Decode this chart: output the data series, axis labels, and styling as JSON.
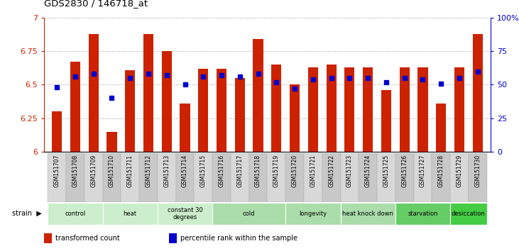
{
  "title": "GDS2830 / 146718_at",
  "samples": [
    "GSM151707",
    "GSM151708",
    "GSM151709",
    "GSM151710",
    "GSM151711",
    "GSM151712",
    "GSM151713",
    "GSM151714",
    "GSM151715",
    "GSM151716",
    "GSM151717",
    "GSM151718",
    "GSM151719",
    "GSM151720",
    "GSM151721",
    "GSM151722",
    "GSM151723",
    "GSM151724",
    "GSM151725",
    "GSM151726",
    "GSM151727",
    "GSM151728",
    "GSM151729",
    "GSM151730"
  ],
  "bar_values": [
    6.3,
    6.67,
    6.88,
    6.15,
    6.61,
    6.88,
    6.75,
    6.36,
    6.62,
    6.62,
    6.55,
    6.84,
    6.65,
    6.5,
    6.63,
    6.65,
    6.63,
    6.63,
    6.46,
    6.63,
    6.63,
    6.36,
    6.63,
    6.88
  ],
  "percentile_values": [
    48,
    56,
    58,
    40,
    55,
    58,
    57,
    50,
    56,
    57,
    56,
    58,
    52,
    47,
    54,
    55,
    55,
    55,
    52,
    55,
    54,
    51,
    55,
    60
  ],
  "bar_color": "#cc2200",
  "dot_color": "#0000cc",
  "ylim_left": [
    6.0,
    7.0
  ],
  "ylim_right": [
    0,
    100
  ],
  "yticks_left": [
    6.0,
    6.25,
    6.5,
    6.75,
    7.0
  ],
  "ytick_labels_left": [
    "6",
    "6.25",
    "6.5",
    "6.75",
    "7"
  ],
  "yticks_right": [
    0,
    25,
    50,
    75,
    100
  ],
  "ytick_labels_right": [
    "0",
    "25",
    "50",
    "75",
    "100%"
  ],
  "groups": [
    {
      "label": "control",
      "start": 0,
      "end": 2,
      "color": "#cceecc"
    },
    {
      "label": "heat",
      "start": 3,
      "end": 5,
      "color": "#cceecc"
    },
    {
      "label": "constant 30\ndegrees",
      "start": 6,
      "end": 8,
      "color": "#cceecc"
    },
    {
      "label": "cold",
      "start": 9,
      "end": 12,
      "color": "#aaddaa"
    },
    {
      "label": "longevity",
      "start": 13,
      "end": 15,
      "color": "#aaddaa"
    },
    {
      "label": "heat knock down",
      "start": 16,
      "end": 18,
      "color": "#aaddaa"
    },
    {
      "label": "starvation",
      "start": 19,
      "end": 21,
      "color": "#66cc66"
    },
    {
      "label": "desiccation",
      "start": 22,
      "end": 23,
      "color": "#44cc44"
    }
  ],
  "bar_width": 0.55,
  "grid_linestyle": ":",
  "grid_color": "#999999",
  "legend_items": [
    {
      "label": "transformed count",
      "color": "#cc2200"
    },
    {
      "label": "percentile rank within the sample",
      "color": "#0000cc"
    }
  ]
}
